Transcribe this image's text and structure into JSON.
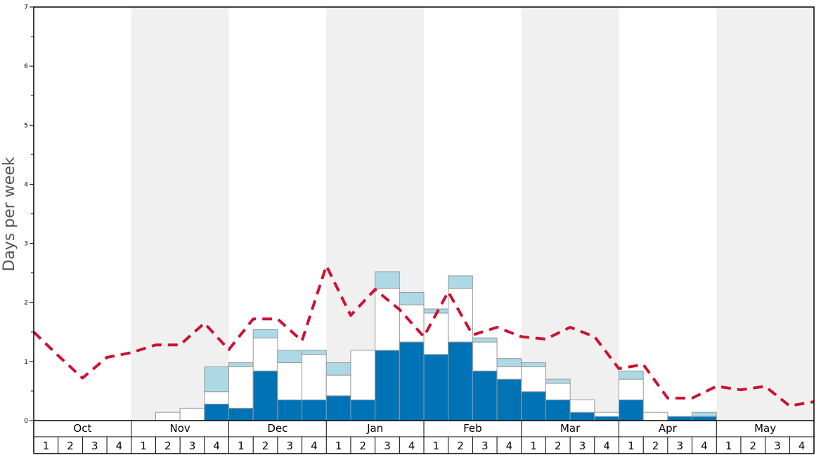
{
  "chart_data": {
    "type": "bar",
    "ylabel": "Days per week",
    "ylim": [
      0,
      7
    ],
    "y_ticks": [
      0,
      1,
      2,
      3,
      4,
      5,
      6,
      7
    ],
    "months": [
      "Oct",
      "Nov",
      "Dec",
      "Jan",
      "Feb",
      "Mar",
      "Apr",
      "May"
    ],
    "weeks": [
      "1",
      "2",
      "3",
      "4"
    ],
    "grid": false,
    "colors": {
      "series_dark": "#0073b7",
      "series_white": "#ffffff",
      "series_light": "#add8e6",
      "dashed_line": "#cc1133",
      "shaded_band": "#f0f0f0",
      "bar_border": "#999999"
    },
    "series": [
      {
        "values": [
          0,
          0,
          0,
          0,
          0,
          0,
          0,
          0.28,
          0.21,
          0.84,
          0.35,
          0.35,
          0.42,
          0.35,
          1.19,
          1.33,
          1.12,
          1.33,
          0.84,
          0.7,
          0.49,
          0.35,
          0.14,
          0.07,
          0.35,
          0,
          0.07,
          0.07,
          0,
          0,
          0,
          0
        ]
      },
      {
        "values": [
          0,
          0,
          0,
          0,
          0,
          0.14,
          0.21,
          0.21,
          0.7,
          0.56,
          0.63,
          0.77,
          0.35,
          0.84,
          1.05,
          0.63,
          0.7,
          0.91,
          0.49,
          0.21,
          0.42,
          0.28,
          0.21,
          0.07,
          0.35,
          0.14,
          0,
          0,
          0,
          0,
          0,
          0
        ]
      },
      {
        "values": [
          0,
          0,
          0,
          0,
          0,
          0,
          0,
          0.42,
          0.07,
          0.14,
          0.21,
          0.07,
          0.21,
          0,
          0.28,
          0.21,
          0.07,
          0.21,
          0.07,
          0.14,
          0.07,
          0.07,
          0,
          0,
          0.14,
          0,
          0,
          0.07,
          0,
          0,
          0,
          0
        ]
      },
      {
        "type": "line",
        "values": [
          1.5,
          1.1,
          0.72,
          1.07,
          1.15,
          1.28,
          1.28,
          1.65,
          1.2,
          1.72,
          1.72,
          1.35,
          2.62,
          1.78,
          2.22,
          1.88,
          1.42,
          2.18,
          1.45,
          1.58,
          1.42,
          1.38,
          1.58,
          1.42,
          0.88,
          0.95,
          0.38,
          0.38,
          0.58,
          0.52,
          0.58,
          0.25,
          0.32
        ]
      }
    ]
  }
}
